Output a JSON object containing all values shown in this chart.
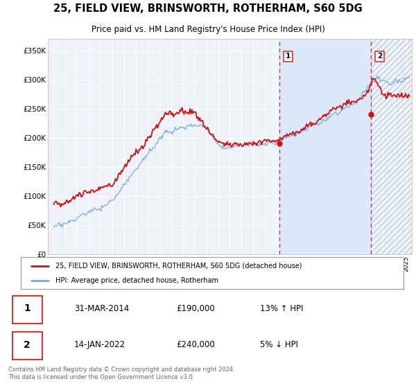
{
  "title": "25, FIELD VIEW, BRINSWORTH, ROTHERHAM, S60 5DG",
  "subtitle": "Price paid vs. HM Land Registry's House Price Index (HPI)",
  "ylabel_ticks": [
    "£0",
    "£50K",
    "£100K",
    "£150K",
    "£200K",
    "£250K",
    "£300K",
    "£350K"
  ],
  "ytick_vals": [
    0,
    50000,
    100000,
    150000,
    200000,
    250000,
    300000,
    350000
  ],
  "ylim": [
    0,
    370000
  ],
  "xlim_start": 1994.5,
  "xlim_end": 2025.5,
  "hpi_color": "#7aaadd",
  "price_color": "#cc1111",
  "dashed_line_color": "#dd3333",
  "shade_color": "#dce8f8",
  "marker1_x": 2014.25,
  "marker1_y": 190000,
  "marker1_label": "1",
  "marker1_date": "31-MAR-2014",
  "marker1_price": "£190,000",
  "marker1_hpi": "13% ↑ HPI",
  "marker2_x": 2022.04,
  "marker2_y": 240000,
  "marker2_label": "2",
  "marker2_date": "14-JAN-2022",
  "marker2_price": "£240,000",
  "marker2_hpi": "5% ↓ HPI",
  "legend_line1": "25, FIELD VIEW, BRINSWORTH, ROTHERHAM, S60 5DG (detached house)",
  "legend_line2": "HPI: Average price, detached house, Rotherham",
  "footer": "Contains HM Land Registry data © Crown copyright and database right 2024.\nThis data is licensed under the Open Government Licence v3.0.",
  "background_color": "#ffffff",
  "plot_bg_color": "#eef2f8",
  "grid_color": "#ffffff"
}
